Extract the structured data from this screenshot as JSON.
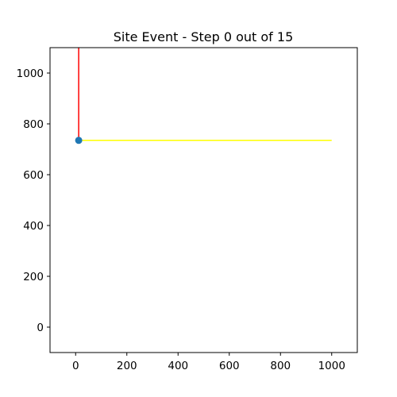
{
  "chart_data": {
    "type": "line",
    "title": "Site Event - Step 0 out of 15",
    "xlabel": "",
    "ylabel": "",
    "xlim": [
      -100,
      1100
    ],
    "ylim": [
      -100,
      1100
    ],
    "x_ticks": [
      0,
      200,
      400,
      600,
      800,
      1000
    ],
    "y_ticks": [
      0,
      200,
      400,
      600,
      800,
      1000
    ],
    "grid": false,
    "series": [
      {
        "kind": "line",
        "color": "#ff0000",
        "points": [
          [
            12,
            735
          ],
          [
            12,
            1100
          ]
        ]
      },
      {
        "kind": "line",
        "color": "#ffff00",
        "points": [
          [
            12,
            735
          ],
          [
            1000,
            735
          ]
        ]
      },
      {
        "kind": "scatter",
        "color": "#1f77b4",
        "points": [
          [
            12,
            735
          ]
        ]
      }
    ]
  }
}
